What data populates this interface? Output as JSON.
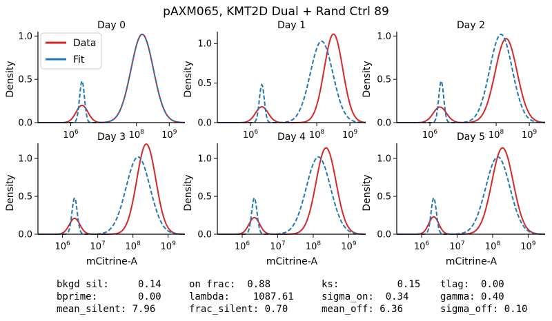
{
  "figure": {
    "title": "pAXM065, KMT2D Dual + Rand Ctrl 89",
    "xlabel": "mCitrine-A",
    "ylabel": "Density"
  },
  "legend": {
    "placement": "top-left of Day 0 panel",
    "items": [
      {
        "label": "Data",
        "color": "#d62728",
        "style": "solid"
      },
      {
        "label": "Fit",
        "color": "#1f77b4",
        "style": "dashed"
      }
    ]
  },
  "colors": {
    "data": "#d62728",
    "fit": "#1f77b4"
  },
  "chart_data": [
    {
      "type": "line",
      "title": "Day 0",
      "xscale": "log",
      "xlim": [
        100000,
        3000000000
      ],
      "ylim": [
        0,
        1.05
      ],
      "xticks": [
        {
          "v": 1000000,
          "label": "10^6"
        },
        {
          "v": 100000000,
          "label": "10^8"
        },
        {
          "v": 1000000000,
          "label": "10^9"
        }
      ],
      "yticks": [
        0.0,
        0.5,
        1.0
      ],
      "series": [
        {
          "name": "Data",
          "style": "solid",
          "peaks": [
            {
              "x": 2200000,
              "height": 0.2,
              "width": 0.18
            },
            {
              "x": 150000000,
              "height": 1.02,
              "width": 0.34
            }
          ]
        },
        {
          "name": "Fit",
          "style": "dashed",
          "peaks": [
            {
              "x": 2200000,
              "height": 0.48,
              "width": 0.075
            },
            {
              "x": 150000000,
              "height": 1.02,
              "width": 0.34
            }
          ]
        }
      ]
    },
    {
      "type": "line",
      "title": "Day 1",
      "xscale": "log",
      "xlim": [
        100000,
        3000000000
      ],
      "ylim": [
        0,
        1.15
      ],
      "xticks": [
        {
          "v": 1000000,
          "label": "10^6"
        },
        {
          "v": 100000000,
          "label": "10^8"
        },
        {
          "v": 1000000000,
          "label": "10^9"
        }
      ],
      "yticks": [
        0.0,
        0.5,
        1.0
      ],
      "series": [
        {
          "name": "Data",
          "style": "solid",
          "peaks": [
            {
              "x": 2200000,
              "height": 0.2,
              "width": 0.19
            },
            {
              "x": 320000000,
              "height": 1.12,
              "width": 0.28
            }
          ]
        },
        {
          "name": "Fit",
          "style": "dashed",
          "peaks": [
            {
              "x": 2200000,
              "height": 0.48,
              "width": 0.075
            },
            {
              "x": 140000000,
              "height": 1.03,
              "width": 0.34
            }
          ]
        }
      ]
    },
    {
      "type": "line",
      "title": "Day 2",
      "xscale": "log",
      "xlim": [
        100000,
        3000000000
      ],
      "ylim": [
        0,
        1.05
      ],
      "xticks": [
        {
          "v": 1000000,
          "label": "10^6"
        },
        {
          "v": 100000000,
          "label": "10^8"
        },
        {
          "v": 1000000000,
          "label": "10^9"
        }
      ],
      "yticks": [
        0.0,
        0.5,
        1.0
      ],
      "series": [
        {
          "name": "Data",
          "style": "solid",
          "peaks": [
            {
              "x": 2000000,
              "height": 0.18,
              "width": 0.2
            },
            {
              "x": 200000000,
              "height": 0.97,
              "width": 0.33
            }
          ]
        },
        {
          "name": "Fit",
          "style": "dashed",
          "peaks": [
            {
              "x": 2200000,
              "height": 0.48,
              "width": 0.075
            },
            {
              "x": 140000000,
              "height": 1.02,
              "width": 0.34
            }
          ]
        }
      ]
    },
    {
      "type": "line",
      "title": "Day 3",
      "xscale": "log",
      "xlim": [
        200000,
        3000000000
      ],
      "ylim": [
        0,
        1.2
      ],
      "xticks": [
        {
          "v": 1000000,
          "label": "10^6"
        },
        {
          "v": 10000000,
          "label": "10^7"
        },
        {
          "v": 100000000,
          "label": "10^8"
        },
        {
          "v": 1000000000,
          "label": "10^9"
        }
      ],
      "yticks": [
        0.0,
        0.5,
        1.0
      ],
      "series": [
        {
          "name": "Data",
          "style": "solid",
          "peaks": [
            {
              "x": 2200000,
              "height": 0.21,
              "width": 0.15
            },
            {
              "x": 240000000,
              "height": 1.19,
              "width": 0.27
            }
          ]
        },
        {
          "name": "Fit",
          "style": "dashed",
          "peaks": [
            {
              "x": 2200000,
              "height": 0.48,
              "width": 0.075
            },
            {
              "x": 140000000,
              "height": 1.02,
              "width": 0.34
            }
          ]
        }
      ]
    },
    {
      "type": "line",
      "title": "Day 4",
      "xscale": "log",
      "xlim": [
        200000,
        3000000000
      ],
      "ylim": [
        0,
        1.2
      ],
      "xticks": [
        {
          "v": 1000000,
          "label": "10^6"
        },
        {
          "v": 10000000,
          "label": "10^7"
        },
        {
          "v": 100000000,
          "label": "10^8"
        },
        {
          "v": 1000000000,
          "label": "10^9"
        }
      ],
      "yticks": [
        0.0,
        0.5,
        1.0
      ],
      "series": [
        {
          "name": "Data",
          "style": "solid",
          "peaks": [
            {
              "x": 2200000,
              "height": 0.22,
              "width": 0.15
            },
            {
              "x": 230000000,
              "height": 1.14,
              "width": 0.28
            }
          ]
        },
        {
          "name": "Fit",
          "style": "dashed",
          "peaks": [
            {
              "x": 2200000,
              "height": 0.48,
              "width": 0.075
            },
            {
              "x": 140000000,
              "height": 1.02,
              "width": 0.34
            }
          ]
        }
      ]
    },
    {
      "type": "line",
      "title": "Day 5",
      "xscale": "log",
      "xlim": [
        200000,
        3000000000
      ],
      "ylim": [
        0,
        1.2
      ],
      "xticks": [
        {
          "v": 1000000,
          "label": "10^6"
        },
        {
          "v": 10000000,
          "label": "10^7"
        },
        {
          "v": 100000000,
          "label": "10^8"
        },
        {
          "v": 1000000000,
          "label": "10^9"
        }
      ],
      "yticks": [
        0.0,
        0.5,
        1.0
      ],
      "series": [
        {
          "name": "Data",
          "style": "solid",
          "peaks": [
            {
              "x": 2200000,
              "height": 0.23,
              "width": 0.14
            },
            {
              "x": 190000000,
              "height": 1.14,
              "width": 0.3
            }
          ]
        },
        {
          "name": "Fit",
          "style": "dashed",
          "peaks": [
            {
              "x": 2200000,
              "height": 0.48,
              "width": 0.075
            },
            {
              "x": 140000000,
              "height": 1.02,
              "width": 0.34
            }
          ]
        }
      ]
    }
  ],
  "stats": [
    [
      "bkgd sil:     0.14",
      "on frac:  0.88",
      "ks:          0.15",
      "tlag:  0.00"
    ],
    [
      "bprime:       0.00",
      "lambda:    1087.61",
      "sigma_on:  0.34",
      "gamma: 0.40"
    ],
    [
      "mean_silent: 7.96",
      "frac_silent: 0.70",
      "mean_off: 6.36",
      "sigma_off: 0.10"
    ]
  ]
}
